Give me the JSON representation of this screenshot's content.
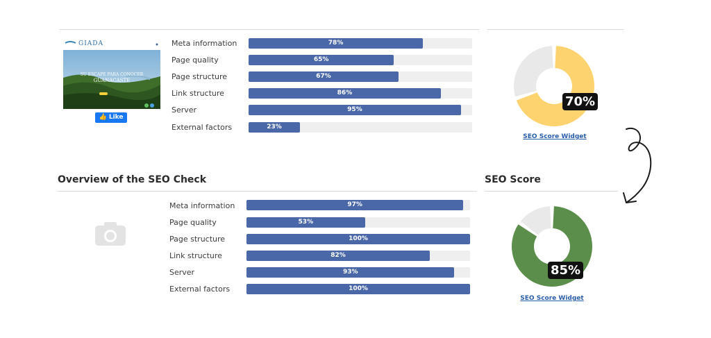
{
  "top": {
    "thumbnail": {
      "brand": "GIADA",
      "tagline1": "SU ESCAPE PARA CONOCER",
      "tagline2": "GUANACASTE"
    },
    "like_label": "Like",
    "metrics": [
      {
        "label": "Meta information",
        "value": 78,
        "pct": "78%"
      },
      {
        "label": "Page quality",
        "value": 65,
        "pct": "65%"
      },
      {
        "label": "Page structure",
        "value": 67,
        "pct": "67%"
      },
      {
        "label": "Link structure",
        "value": 86,
        "pct": "86%"
      },
      {
        "label": "Server",
        "value": 95,
        "pct": "95%"
      },
      {
        "label": "External factors",
        "value": 23,
        "pct": "23%"
      }
    ],
    "score": {
      "value": 70,
      "text": "70%",
      "color": "#fdd36f",
      "rest_color": "#e9e9e9"
    },
    "widget_link": "SEO Score Widget"
  },
  "bottom": {
    "section_title": "Overview of the SEO Check",
    "score_title": "SEO Score",
    "placeholder_icon": "camera-icon",
    "metrics": [
      {
        "label": "Meta information",
        "value": 97,
        "pct": "97%"
      },
      {
        "label": "Page quality",
        "value": 53,
        "pct": "53%"
      },
      {
        "label": "Page structure",
        "value": 100,
        "pct": "100%"
      },
      {
        "label": "Link structure",
        "value": 82,
        "pct": "82%"
      },
      {
        "label": "Server",
        "value": 93,
        "pct": "93%"
      },
      {
        "label": "External factors",
        "value": 100,
        "pct": "100%"
      }
    ],
    "score": {
      "value": 85,
      "text": "85%",
      "color": "#5a8e4a",
      "rest_color": "#e9e9e9"
    },
    "widget_link": "SEO Score Widget"
  },
  "colors": {
    "bar_fill": "#4a68a8",
    "bar_track": "#efefef",
    "link": "#2a5daa"
  },
  "decor": {
    "arrow_icon": "curved-arrow-icon"
  }
}
